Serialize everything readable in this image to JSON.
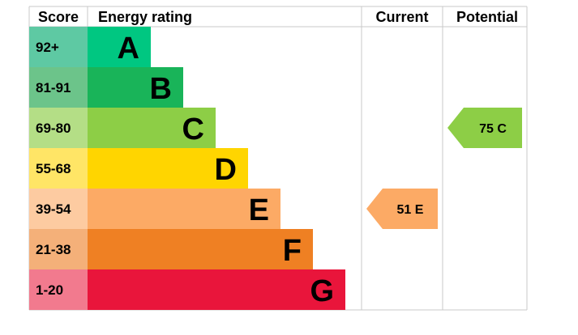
{
  "headers": {
    "score": "Score",
    "rating": "Energy rating",
    "current": "Current",
    "potential": "Potential"
  },
  "chart_data": {
    "type": "bar",
    "categories": [
      "A",
      "B",
      "C",
      "D",
      "E",
      "F",
      "G"
    ],
    "bands": [
      {
        "score": "92+",
        "letter": "A",
        "color": "#00c781",
        "score_bg": "#5ec9a3",
        "letter_color": "#000000"
      },
      {
        "score": "81-91",
        "letter": "B",
        "color": "#19b459",
        "score_bg": "#6cc48a",
        "letter_color": "#000000"
      },
      {
        "score": "69-80",
        "letter": "C",
        "color": "#8dce46",
        "score_bg": "#b4de86",
        "letter_color": "#000000"
      },
      {
        "score": "55-68",
        "letter": "D",
        "color": "#ffd500",
        "score_bg": "#ffe566",
        "letter_color": "#000000"
      },
      {
        "score": "39-54",
        "letter": "E",
        "color": "#fcaa65",
        "score_bg": "#fdcba1",
        "letter_color": "#000000"
      },
      {
        "score": "21-38",
        "letter": "F",
        "color": "#ef8023",
        "score_bg": "#f4b079",
        "letter_color": "#000000"
      },
      {
        "score": "1-20",
        "letter": "G",
        "color": "#e9153b",
        "score_bg": "#f27a8e",
        "letter_color": "#000000"
      }
    ],
    "current": {
      "value": 51,
      "band": "E",
      "label": "51  E",
      "color": "#fcaa65"
    },
    "potential": {
      "value": 75,
      "band": "C",
      "label": "75  C",
      "color": "#8dce46"
    }
  }
}
